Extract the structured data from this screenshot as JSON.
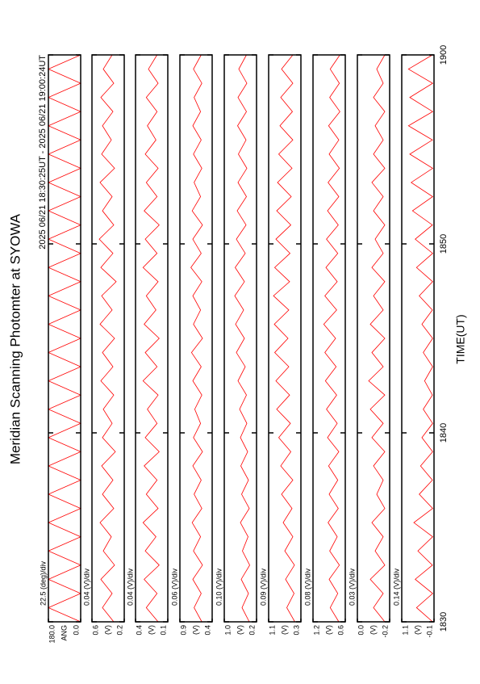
{
  "chart_data": {
    "type": "line",
    "title": "Meridian Scanning Photomter at SYOWA",
    "subtitle": "2025 06/21 18:30:25UT - 2025 06/21 19:00:24UT",
    "x_label": "TIME(UT)",
    "color": "#ff0000",
    "xlim": [
      0,
      30
    ],
    "xticks": [
      {
        "value": 0,
        "label": "1830"
      },
      {
        "value": 10,
        "label": "1840"
      },
      {
        "value": 20,
        "label": "1850"
      },
      {
        "value": 30,
        "label": "1900"
      }
    ],
    "x": [
      0,
      0.75,
      1.5,
      2.25,
      3,
      3.75,
      4.5,
      5.25,
      6,
      6.75,
      7.5,
      8.25,
      9,
      9.75,
      10.5,
      11.25,
      12,
      12.75,
      13.5,
      14.25,
      15,
      15.75,
      16.5,
      17.25,
      18,
      18.75,
      19.5,
      20.25,
      21,
      21.75,
      22.5,
      23.25,
      24,
      24.75,
      25.5,
      26.25,
      27,
      27.75,
      28.5,
      29.25,
      30
    ],
    "panels": [
      {
        "scale": "22.5 (deg)/div",
        "y_label": "ANG",
        "ylim": [
          0,
          180
        ],
        "yticks": [
          {
            "value": 180,
            "label": "180.0"
          },
          {
            "value": 0,
            "label": "0.0"
          }
        ],
        "values": [
          0,
          180,
          0,
          180,
          0,
          180,
          0,
          180,
          0,
          180,
          0,
          180,
          0,
          180,
          0,
          180,
          0,
          180,
          0,
          180,
          0,
          180,
          0,
          180,
          0,
          180,
          0,
          180,
          0,
          180,
          0,
          180,
          0,
          180,
          0,
          180,
          0,
          180,
          0,
          180,
          0
        ]
      },
      {
        "scale": "0.04 (V)/div",
        "y_label": "(V)",
        "ylim": [
          0.2,
          0.6
        ],
        "yticks": [
          0.6,
          0.2
        ],
        "values": [
          0.33,
          0.47,
          0.35,
          0.49,
          0.32,
          0.46,
          0.36,
          0.5,
          0.33,
          0.47,
          0.34,
          0.48,
          0.31,
          0.47,
          0.35,
          0.46,
          0.33,
          0.49,
          0.34,
          0.47,
          0.32,
          0.5,
          0.35,
          0.48,
          0.3,
          0.49,
          0.34,
          0.51,
          0.33,
          0.47,
          0.35,
          0.5,
          0.32,
          0.48,
          0.36,
          0.47,
          0.34,
          0.49,
          0.33,
          0.46,
          0.35
        ]
      },
      {
        "scale": "0.04 (V)/div",
        "y_label": "(V)",
        "ylim": [
          0.1,
          0.4
        ],
        "yticks": [
          0.4,
          0.1
        ],
        "values": [
          0.19,
          0.3,
          0.2,
          0.32,
          0.18,
          0.31,
          0.21,
          0.33,
          0.19,
          0.3,
          0.2,
          0.32,
          0.18,
          0.31,
          0.2,
          0.29,
          0.19,
          0.33,
          0.2,
          0.31,
          0.18,
          0.32,
          0.21,
          0.3,
          0.19,
          0.33,
          0.2,
          0.31,
          0.18,
          0.32,
          0.2,
          0.3,
          0.19,
          0.31,
          0.21,
          0.29,
          0.2,
          0.3,
          0.19,
          0.28,
          0.2
        ]
      },
      {
        "scale": "0.06 (V)/div",
        "y_label": "(V)",
        "ylim": [
          0.4,
          0.9
        ],
        "yticks": [
          0.9,
          0.4
        ],
        "values": [
          0.56,
          0.68,
          0.57,
          0.7,
          0.55,
          0.69,
          0.58,
          0.71,
          0.56,
          0.68,
          0.57,
          0.7,
          0.55,
          0.69,
          0.58,
          0.67,
          0.56,
          0.7,
          0.57,
          0.72,
          0.55,
          0.69,
          0.58,
          0.7,
          0.56,
          0.73,
          0.57,
          0.7,
          0.55,
          0.71,
          0.58,
          0.68,
          0.56,
          0.69,
          0.57,
          0.7,
          0.58,
          0.68,
          0.56,
          0.69,
          0.57
        ]
      },
      {
        "scale": "0.10 (V)/div",
        "y_label": "(V)",
        "ylim": [
          0.2,
          1.0
        ],
        "yticks": [
          {
            "value": 1,
            "label": "1.0"
          },
          0.2
        ],
        "values": [
          0.38,
          0.56,
          0.4,
          0.58,
          0.37,
          0.55,
          0.41,
          0.6,
          0.38,
          0.57,
          0.4,
          0.59,
          0.42,
          0.6,
          0.44,
          0.62,
          0.45,
          0.66,
          0.48,
          0.7,
          0.5,
          0.72,
          0.52,
          0.74,
          0.5,
          0.73,
          0.48,
          0.7,
          0.46,
          0.68,
          0.45,
          0.66,
          0.44,
          0.65,
          0.46,
          0.67,
          0.45,
          0.66,
          0.44,
          0.64,
          0.45
        ]
      },
      {
        "scale": "0.09 (V)/div",
        "y_label": "(V)",
        "ylim": [
          0.3,
          1.1
        ],
        "yticks": [
          1.1,
          0.3
        ],
        "values": [
          0.45,
          0.65,
          0.47,
          0.68,
          0.46,
          0.7,
          0.5,
          0.74,
          0.52,
          0.78,
          0.5,
          0.8,
          0.55,
          0.85,
          0.56,
          0.9,
          0.58,
          0.92,
          0.6,
          0.95,
          0.62,
          0.96,
          0.6,
          0.98,
          0.58,
          0.95,
          0.57,
          0.92,
          0.55,
          0.9,
          0.54,
          0.88,
          0.52,
          0.85,
          0.5,
          0.82,
          0.51,
          0.8,
          0.5,
          0.78,
          0.5
        ]
      },
      {
        "scale": "0.08 (V)/div",
        "y_label": "(V)",
        "ylim": [
          0.6,
          1.2
        ],
        "yticks": [
          1.2,
          0.6
        ],
        "values": [
          0.72,
          0.88,
          0.74,
          0.9,
          0.71,
          0.89,
          0.75,
          0.92,
          0.73,
          0.9,
          0.74,
          0.91,
          0.72,
          0.93,
          0.75,
          0.95,
          0.76,
          0.97,
          0.77,
          0.98,
          0.78,
          1.0,
          0.76,
          0.98,
          0.75,
          0.96,
          0.74,
          0.95,
          0.73,
          0.93,
          0.72,
          0.92,
          0.71,
          0.9,
          0.72,
          0.91,
          0.7,
          0.89,
          0.71,
          0.88,
          0.7
        ]
      },
      {
        "scale": "0.03 (V)/div",
        "y_label": "(V)",
        "ylim": [
          -0.2,
          0
        ],
        "yticks": [
          {
            "value": 0,
            "label": "0.0"
          },
          -0.2
        ],
        "values": [
          -0.17,
          -0.1,
          -0.16,
          -0.08,
          -0.17,
          -0.11,
          -0.16,
          -0.09,
          -0.17,
          -0.12,
          -0.16,
          -0.1,
          -0.17,
          -0.09,
          -0.16,
          -0.08,
          -0.17,
          -0.07,
          -0.16,
          -0.09,
          -0.17,
          -0.08,
          -0.16,
          -0.1,
          -0.17,
          -0.09,
          -0.16,
          -0.11,
          -0.17,
          -0.1,
          -0.16,
          -0.09,
          -0.17,
          -0.1,
          -0.16,
          -0.11,
          -0.17,
          -0.1,
          -0.16,
          -0.12,
          -0.17
        ]
      },
      {
        "scale": "0.14 (V)/div",
        "y_label": "(V)",
        "ylim": [
          -0.1,
          1.1
        ],
        "yticks": [
          1.1,
          -0.1
        ],
        "values": [
          -0.05,
          0.55,
          -0.05,
          0.6,
          -0.04,
          0.5,
          -0.05,
          0.65,
          -0.05,
          0.45,
          -0.04,
          0.4,
          -0.05,
          0.35,
          -0.05,
          0.3,
          -0.04,
          0.25,
          -0.05,
          0.3,
          -0.05,
          0.35,
          -0.04,
          0.45,
          -0.05,
          0.55,
          -0.05,
          0.6,
          -0.04,
          0.7,
          -0.05,
          0.75,
          -0.05,
          0.8,
          -0.04,
          0.85,
          -0.05,
          0.8,
          -0.05,
          0.85,
          -0.04
        ]
      }
    ]
  }
}
